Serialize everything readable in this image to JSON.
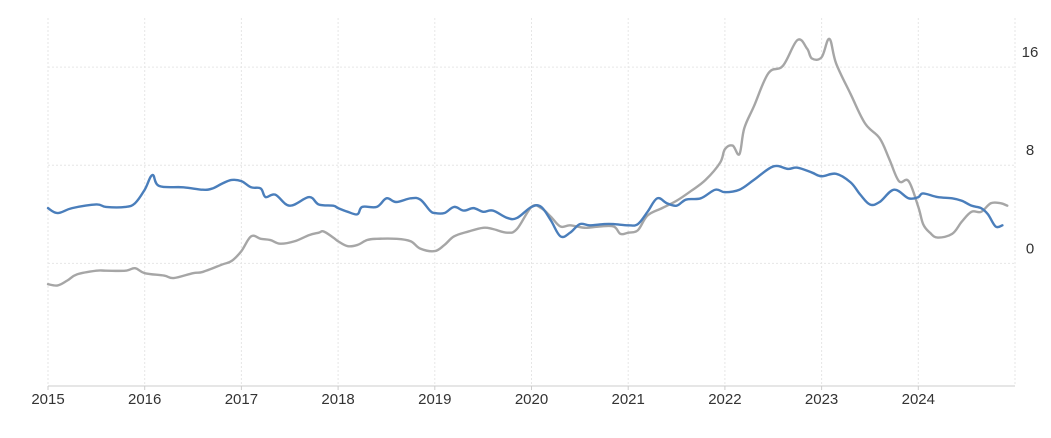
{
  "chart_data": {
    "type": "line",
    "title": "",
    "xlabel": "",
    "ylabel": "",
    "x_range": [
      2015.0,
      2024.92
    ],
    "ylim": [
      -10,
      20
    ],
    "x_ticks": [
      "2015",
      "2016",
      "2017",
      "2018",
      "2019",
      "2020",
      "2021",
      "2022",
      "2023",
      "2024"
    ],
    "y_ticks": [
      "16",
      "8",
      "0"
    ],
    "y_tick_values": [
      16,
      8,
      0
    ],
    "y_axis_position": "right",
    "grid": true,
    "legend": "none",
    "series": [
      {
        "color": "#4a7ebb",
        "points": [
          [
            2015.0,
            4.5
          ],
          [
            2015.1,
            4.1
          ],
          [
            2015.25,
            4.5
          ],
          [
            2015.5,
            4.8
          ],
          [
            2015.6,
            4.6
          ],
          [
            2015.8,
            4.6
          ],
          [
            2015.9,
            4.9
          ],
          [
            2016.0,
            6.0
          ],
          [
            2016.08,
            7.2
          ],
          [
            2016.15,
            6.3
          ],
          [
            2016.4,
            6.2
          ],
          [
            2016.6,
            6.0
          ],
          [
            2016.7,
            6.1
          ],
          [
            2016.8,
            6.5
          ],
          [
            2016.9,
            6.8
          ],
          [
            2017.0,
            6.7
          ],
          [
            2017.1,
            6.2
          ],
          [
            2017.2,
            6.1
          ],
          [
            2017.25,
            5.4
          ],
          [
            2017.35,
            5.6
          ],
          [
            2017.5,
            4.7
          ],
          [
            2017.7,
            5.4
          ],
          [
            2017.8,
            4.8
          ],
          [
            2017.95,
            4.7
          ],
          [
            2018.0,
            4.5
          ],
          [
            2018.1,
            4.2
          ],
          [
            2018.2,
            4.0
          ],
          [
            2018.25,
            4.6
          ],
          [
            2018.4,
            4.6
          ],
          [
            2018.5,
            5.3
          ],
          [
            2018.6,
            5.0
          ],
          [
            2018.75,
            5.3
          ],
          [
            2018.85,
            5.2
          ],
          [
            2018.95,
            4.3
          ],
          [
            2019.0,
            4.1
          ],
          [
            2019.1,
            4.1
          ],
          [
            2019.2,
            4.6
          ],
          [
            2019.3,
            4.3
          ],
          [
            2019.4,
            4.5
          ],
          [
            2019.5,
            4.2
          ],
          [
            2019.6,
            4.3
          ],
          [
            2019.75,
            3.7
          ],
          [
            2019.85,
            3.7
          ],
          [
            2020.0,
            4.6
          ],
          [
            2020.1,
            4.6
          ],
          [
            2020.2,
            3.5
          ],
          [
            2020.3,
            2.2
          ],
          [
            2020.4,
            2.5
          ],
          [
            2020.5,
            3.2
          ],
          [
            2020.6,
            3.1
          ],
          [
            2020.75,
            3.2
          ],
          [
            2020.85,
            3.2
          ],
          [
            2021.0,
            3.1
          ],
          [
            2021.1,
            3.2
          ],
          [
            2021.2,
            4.2
          ],
          [
            2021.3,
            5.3
          ],
          [
            2021.4,
            4.9
          ],
          [
            2021.5,
            4.7
          ],
          [
            2021.6,
            5.2
          ],
          [
            2021.75,
            5.3
          ],
          [
            2021.9,
            6.0
          ],
          [
            2022.0,
            5.8
          ],
          [
            2022.15,
            6.0
          ],
          [
            2022.3,
            6.8
          ],
          [
            2022.5,
            7.9
          ],
          [
            2022.65,
            7.7
          ],
          [
            2022.75,
            7.8
          ],
          [
            2022.9,
            7.4
          ],
          [
            2023.0,
            7.1
          ],
          [
            2023.15,
            7.3
          ],
          [
            2023.3,
            6.6
          ],
          [
            2023.4,
            5.6
          ],
          [
            2023.5,
            4.8
          ],
          [
            2023.6,
            5.0
          ],
          [
            2023.75,
            6.0
          ],
          [
            2023.9,
            5.3
          ],
          [
            2024.0,
            5.4
          ],
          [
            2024.05,
            5.7
          ],
          [
            2024.2,
            5.4
          ],
          [
            2024.35,
            5.3
          ],
          [
            2024.45,
            5.1
          ],
          [
            2024.55,
            4.7
          ],
          [
            2024.65,
            4.5
          ],
          [
            2024.72,
            4.0
          ],
          [
            2024.8,
            3.0
          ],
          [
            2024.87,
            3.1
          ]
        ]
      },
      {
        "color": "#a6a6a6",
        "points": [
          [
            2015.0,
            -1.7
          ],
          [
            2015.1,
            -1.8
          ],
          [
            2015.2,
            -1.4
          ],
          [
            2015.3,
            -0.9
          ],
          [
            2015.5,
            -0.6
          ],
          [
            2015.6,
            -0.6
          ],
          [
            2015.8,
            -0.6
          ],
          [
            2015.9,
            -0.4
          ],
          [
            2016.0,
            -0.8
          ],
          [
            2016.2,
            -1.0
          ],
          [
            2016.3,
            -1.2
          ],
          [
            2016.5,
            -0.8
          ],
          [
            2016.6,
            -0.7
          ],
          [
            2016.8,
            -0.1
          ],
          [
            2016.9,
            0.2
          ],
          [
            2017.0,
            1.0
          ],
          [
            2017.1,
            2.2
          ],
          [
            2017.2,
            2.0
          ],
          [
            2017.3,
            1.9
          ],
          [
            2017.4,
            1.6
          ],
          [
            2017.55,
            1.8
          ],
          [
            2017.7,
            2.3
          ],
          [
            2017.8,
            2.5
          ],
          [
            2017.85,
            2.6
          ],
          [
            2017.95,
            2.1
          ],
          [
            2018.0,
            1.8
          ],
          [
            2018.1,
            1.4
          ],
          [
            2018.2,
            1.5
          ],
          [
            2018.3,
            1.9
          ],
          [
            2018.4,
            2.0
          ],
          [
            2018.6,
            2.0
          ],
          [
            2018.75,
            1.8
          ],
          [
            2018.85,
            1.2
          ],
          [
            2019.0,
            1.0
          ],
          [
            2019.1,
            1.5
          ],
          [
            2019.2,
            2.2
          ],
          [
            2019.35,
            2.6
          ],
          [
            2019.5,
            2.9
          ],
          [
            2019.6,
            2.8
          ],
          [
            2019.75,
            2.5
          ],
          [
            2019.85,
            2.8
          ],
          [
            2020.0,
            4.6
          ],
          [
            2020.1,
            4.5
          ],
          [
            2020.2,
            3.8
          ],
          [
            2020.3,
            3.0
          ],
          [
            2020.4,
            3.1
          ],
          [
            2020.55,
            2.9
          ],
          [
            2020.7,
            3.0
          ],
          [
            2020.85,
            3.0
          ],
          [
            2020.92,
            2.4
          ],
          [
            2021.0,
            2.5
          ],
          [
            2021.1,
            2.7
          ],
          [
            2021.2,
            3.9
          ],
          [
            2021.35,
            4.5
          ],
          [
            2021.5,
            5.1
          ],
          [
            2021.65,
            5.9
          ],
          [
            2021.8,
            6.8
          ],
          [
            2021.95,
            8.2
          ],
          [
            2022.0,
            9.3
          ],
          [
            2022.08,
            9.6
          ],
          [
            2022.15,
            8.9
          ],
          [
            2022.2,
            11.0
          ],
          [
            2022.3,
            12.8
          ],
          [
            2022.45,
            15.5
          ],
          [
            2022.6,
            16.1
          ],
          [
            2022.75,
            18.2
          ],
          [
            2022.85,
            17.5
          ],
          [
            2022.9,
            16.7
          ],
          [
            2023.0,
            16.8
          ],
          [
            2023.08,
            18.3
          ],
          [
            2023.15,
            16.3
          ],
          [
            2023.3,
            13.8
          ],
          [
            2023.45,
            11.4
          ],
          [
            2023.6,
            10.2
          ],
          [
            2023.7,
            8.5
          ],
          [
            2023.8,
            6.7
          ],
          [
            2023.9,
            6.7
          ],
          [
            2024.0,
            4.6
          ],
          [
            2024.05,
            3.2
          ],
          [
            2024.12,
            2.5
          ],
          [
            2024.2,
            2.1
          ],
          [
            2024.35,
            2.4
          ],
          [
            2024.45,
            3.4
          ],
          [
            2024.55,
            4.2
          ],
          [
            2024.65,
            4.2
          ],
          [
            2024.75,
            4.9
          ],
          [
            2024.85,
            4.9
          ],
          [
            2024.92,
            4.7
          ]
        ]
      }
    ]
  }
}
